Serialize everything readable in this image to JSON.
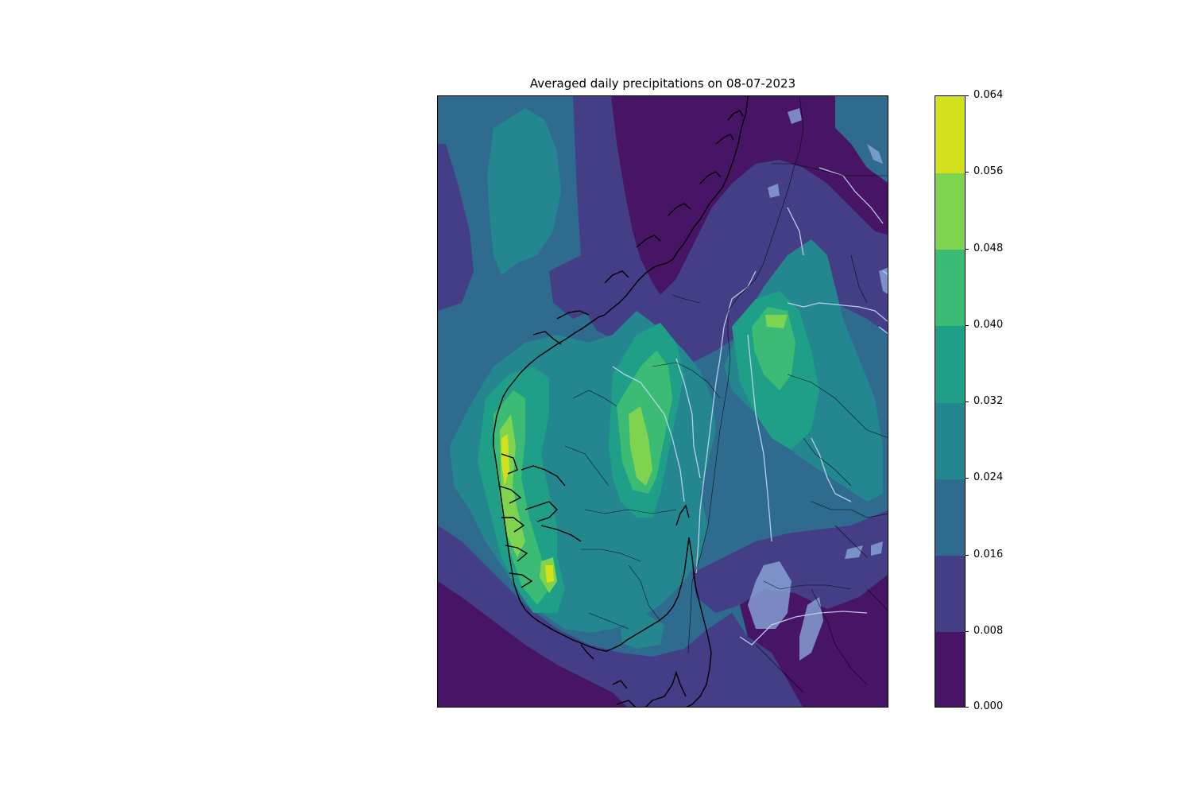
{
  "title": "Averaged daily precipitations on 08-07-2023",
  "colorbar": {
    "levels": [
      "0.000",
      "0.008",
      "0.016",
      "0.024",
      "0.032",
      "0.040",
      "0.048",
      "0.056",
      "0.064"
    ],
    "colors": [
      "#471466",
      "#433e85",
      "#2e6b8e",
      "#24868e",
      "#1f9f88",
      "#3cbb75",
      "#7ed34f",
      "#d2e11b"
    ]
  },
  "map": {
    "background_color": "#2e6b8e",
    "coastline_color": "#000000",
    "lakes_color": "#8aa6d8",
    "rivers_color": "#c8d8f5"
  }
}
